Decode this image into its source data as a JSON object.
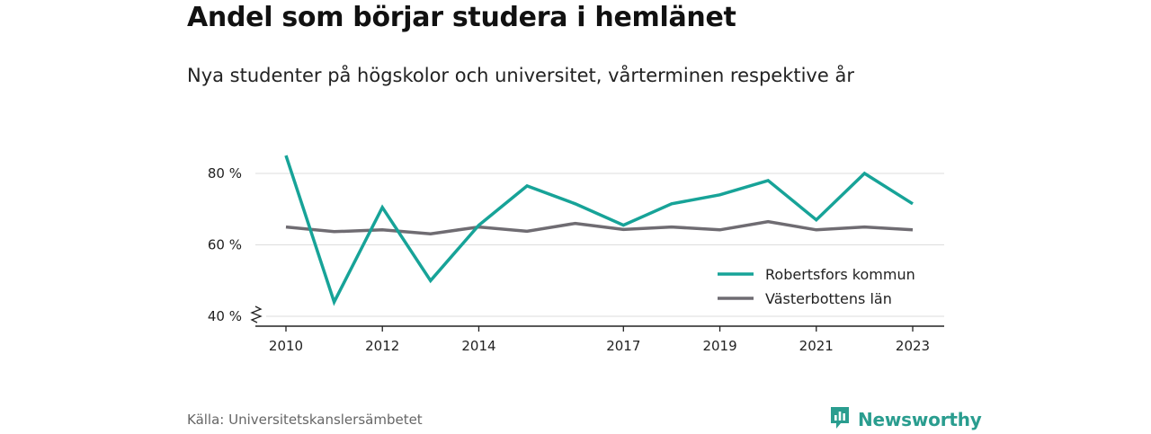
{
  "header": {
    "title": "Andel som börjar studera i hemlänet",
    "subtitle": "Nya studenter på högskolor och universitet, vårterminen respektive år"
  },
  "footer": {
    "source": "Källa: Universitetskanslersämbetet",
    "brand": "Newsworthy",
    "brand_icon": "newsworthy-logo-icon",
    "brand_color": "#2a9d8f"
  },
  "chart_data": {
    "type": "line",
    "title": "Andel som börjar studera i hemlänet",
    "subtitle": "Nya studenter på högskolor och universitet, vårterminen respektive år",
    "x": [
      2010,
      2011,
      2012,
      2013,
      2014,
      2015,
      2016,
      2017,
      2018,
      2019,
      2020,
      2021,
      2022,
      2023
    ],
    "x_ticks": [
      2010,
      2012,
      2014,
      2017,
      2019,
      2021,
      2023
    ],
    "y_ticks": [
      40,
      60,
      80
    ],
    "y_tick_labels": [
      "40 %",
      "60 %",
      "80 %"
    ],
    "ylim": [
      40,
      85
    ],
    "y_axis_break": true,
    "grid": true,
    "legend_position": "bottom-right",
    "series": [
      {
        "name": "Robertsfors kommun",
        "color": "#17a398",
        "values": [
          85,
          44,
          70.5,
          50,
          65.5,
          76.5,
          71.5,
          65.5,
          71.5,
          74,
          78,
          67,
          80,
          71.5
        ]
      },
      {
        "name": "Västerbottens län",
        "color": "#6f6c72",
        "values": [
          65,
          63.7,
          64.2,
          63.1,
          65,
          63.8,
          66,
          64.3,
          65,
          64.2,
          66.5,
          64.2,
          65,
          64.2
        ]
      }
    ]
  }
}
